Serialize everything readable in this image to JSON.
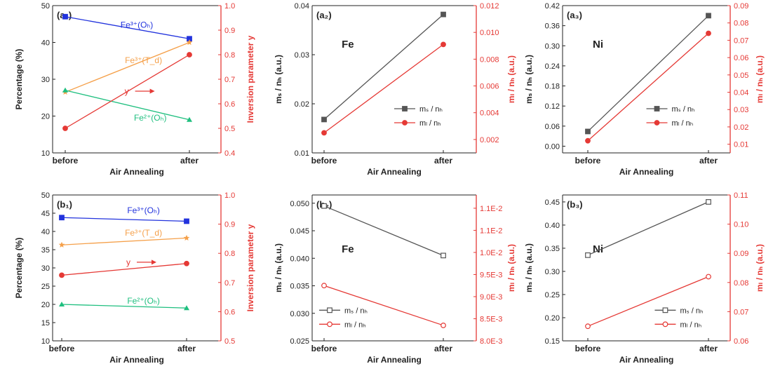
{
  "figure": {
    "colors": {
      "axis": "#222222",
      "right_axis": "#e53935",
      "blue": "#2233dd",
      "orange": "#f5a04a",
      "green": "#1fbf7f",
      "red": "#e53935",
      "gray": "#555555"
    }
  },
  "chart_data": [
    {
      "id": "a1",
      "type": "line",
      "panel_label": "(a₁)",
      "categories": [
        "before",
        "after"
      ],
      "xlabel": "Air Annealing",
      "ylabel": "Percentage (%)",
      "ylim": [
        10,
        50
      ],
      "yticks": [
        "10",
        "20",
        "30",
        "40",
        "50"
      ],
      "yticks_v": [
        10,
        20,
        30,
        40,
        50
      ],
      "y2label": "Inversion parameter y",
      "y2lim": [
        0.4,
        1.0
      ],
      "y2ticks": [
        "0.4",
        "0.5",
        "0.6",
        "0.7",
        "0.8",
        "0.9",
        "1.0"
      ],
      "y2ticks_v": [
        0.4,
        0.5,
        0.6,
        0.7,
        0.8,
        0.9,
        1.0
      ],
      "series": [
        {
          "name": "Fe³⁺(Oₕ)",
          "axis": "left",
          "values": [
            47,
            41
          ],
          "color": "#2233dd",
          "marker": "square"
        },
        {
          "name": "Fe³⁺(T_d)",
          "axis": "left",
          "values": [
            26.5,
            40
          ],
          "color": "#f5a04a",
          "marker": "star"
        },
        {
          "name": "Fe²⁺(Oₕ)",
          "axis": "left",
          "values": [
            27,
            19
          ],
          "color": "#1fbf7f",
          "marker": "triangle"
        },
        {
          "name": "y",
          "axis": "right",
          "values": [
            0.5,
            0.8
          ],
          "color": "#e53935",
          "marker": "circle"
        }
      ],
      "annotations": [
        {
          "text": "Fe³⁺(Oₕ)",
          "fx": 0.5,
          "fy": 0.85,
          "color": "#2233dd"
        },
        {
          "text": "Fe³⁺(T_d)",
          "fx": 0.54,
          "fy": 0.61,
          "color": "#f5a04a"
        },
        {
          "text": "y",
          "fx": 0.44,
          "fy": 0.4,
          "color": "#e53935",
          "arrow": true
        },
        {
          "text": "Fe²⁺(Oₕ)",
          "fx": 0.58,
          "fy": 0.22,
          "color": "#1fbf7f"
        }
      ]
    },
    {
      "id": "a2",
      "type": "line",
      "panel_label": "(a₂)",
      "inside_label": "Fe",
      "categories": [
        "before",
        "after"
      ],
      "xlabel": "Air Annealing",
      "ylabel": "mₛ / nₕ (a.u.)",
      "ylim": [
        0.01,
        0.04
      ],
      "yticks": [
        "0.01",
        "0.02",
        "0.03",
        "0.04"
      ],
      "yticks_v": [
        0.01,
        0.02,
        0.03,
        0.04
      ],
      "y2label": "mₗ / nₕ (a.u.)",
      "y2lim": [
        0.001,
        0.012
      ],
      "y2ticks": [
        "0.002",
        "0.004",
        "0.006",
        "0.008",
        "0.010",
        "0.012"
      ],
      "y2ticks_v": [
        0.002,
        0.004,
        0.006,
        0.008,
        0.01,
        0.012
      ],
      "series": [
        {
          "name": "mₛ / nₕ",
          "axis": "left",
          "values": [
            0.0168,
            0.0382
          ],
          "color": "#555555",
          "marker": "square"
        },
        {
          "name": "mₗ / nₕ",
          "axis": "right",
          "values": [
            0.0025,
            0.0091
          ],
          "color": "#e53935",
          "marker": "circle"
        }
      ],
      "legend": "center-right"
    },
    {
      "id": "a3",
      "type": "line",
      "panel_label": "(a₃)",
      "inside_label": "Ni",
      "categories": [
        "before",
        "after"
      ],
      "xlabel": "Air Annealing",
      "ylabel": "mₛ / nₕ (a.u.)",
      "ylim": [
        -0.02,
        0.42
      ],
      "yticks": [
        "0.00",
        "0.06",
        "0.12",
        "0.18",
        "0.24",
        "0.30",
        "0.36",
        "0.42"
      ],
      "yticks_v": [
        0,
        0.06,
        0.12,
        0.18,
        0.24,
        0.3,
        0.36,
        0.42
      ],
      "y2label": "mₗ / nₕ (a.u.)",
      "y2lim": [
        0.005,
        0.09
      ],
      "y2ticks": [
        "0.01",
        "0.02",
        "0.03",
        "0.04",
        "0.05",
        "0.06",
        "0.07",
        "0.08",
        "0.09"
      ],
      "y2ticks_v": [
        0.01,
        0.02,
        0.03,
        0.04,
        0.05,
        0.06,
        0.07,
        0.08,
        0.09
      ],
      "series": [
        {
          "name": "mₛ / nₕ",
          "axis": "left",
          "values": [
            0.044,
            0.39
          ],
          "color": "#555555",
          "marker": "square"
        },
        {
          "name": "mₗ / nₕ",
          "axis": "right",
          "values": [
            0.012,
            0.074
          ],
          "color": "#e53935",
          "marker": "circle"
        }
      ],
      "legend": "center-right"
    },
    {
      "id": "b1",
      "type": "line",
      "panel_label": "(b₁)",
      "categories": [
        "before",
        "after"
      ],
      "xlabel": "Air Annealing",
      "ylabel": "Percentage (%)",
      "ylim": [
        10,
        50
      ],
      "yticks": [
        "10",
        "15",
        "20",
        "25",
        "30",
        "35",
        "40",
        "45",
        "50"
      ],
      "yticks_v": [
        10,
        15,
        20,
        25,
        30,
        35,
        40,
        45,
        50
      ],
      "y2label": "Inversion parameter y",
      "y2lim": [
        0.5,
        1.0
      ],
      "y2ticks": [
        "0.5",
        "0.6",
        "0.7",
        "0.8",
        "0.9",
        "1.0"
      ],
      "y2ticks_v": [
        0.5,
        0.6,
        0.7,
        0.8,
        0.9,
        1.0
      ],
      "series": [
        {
          "name": "Fe³⁺(Oₕ)",
          "axis": "left",
          "values": [
            43.8,
            42.8
          ],
          "color": "#2233dd",
          "marker": "square"
        },
        {
          "name": "Fe³⁺(T_d)",
          "axis": "left",
          "values": [
            36.3,
            38.2
          ],
          "color": "#f5a04a",
          "marker": "star"
        },
        {
          "name": "Fe²⁺(Oₕ)",
          "axis": "left",
          "values": [
            20,
            19
          ],
          "color": "#1fbf7f",
          "marker": "triangle"
        },
        {
          "name": "y",
          "axis": "right",
          "values": [
            0.725,
            0.765
          ],
          "color": "#e53935",
          "marker": "circle"
        }
      ],
      "annotations": [
        {
          "text": "Fe³⁺(Oₕ)",
          "fx": 0.54,
          "fy": 0.875,
          "color": "#2233dd"
        },
        {
          "text": "Fe³⁺(T_d)",
          "fx": 0.54,
          "fy": 0.72,
          "color": "#f5a04a"
        },
        {
          "text": "y",
          "fx": 0.45,
          "fy": 0.52,
          "color": "#e53935",
          "arrow": true
        },
        {
          "text": "Fe²⁺(Oₕ)",
          "fx": 0.54,
          "fy": 0.255,
          "color": "#1fbf7f"
        }
      ]
    },
    {
      "id": "b2",
      "type": "line",
      "panel_label": "(b₂)",
      "inside_label": "Fe",
      "categories": [
        "before",
        "after"
      ],
      "xlabel": "Air Annealing",
      "ylabel": "mₛ / nₕ (a.u.)",
      "ylim": [
        0.025,
        0.0515
      ],
      "yticks": [
        "0.025",
        "0.030",
        "0.035",
        "0.040",
        "0.045",
        "0.050"
      ],
      "yticks_v": [
        0.025,
        0.03,
        0.035,
        0.04,
        0.045,
        0.05
      ],
      "y2label": "mₗ / nₕ (a.u.)",
      "y2lim": [
        0.008,
        0.0113
      ],
      "y2ticks": [
        "8.0E-3",
        "8.5E-3",
        "9.0E-3",
        "9.5E-3",
        "1.0E-2",
        "1.1E-2",
        "1.1E-2"
      ],
      "y2ticks_v": [
        0.008,
        0.0085,
        0.009,
        0.0095,
        0.01,
        0.0105,
        0.011
      ],
      "series": [
        {
          "name": "mₛ / nₕ",
          "axis": "left",
          "values": [
            0.0495,
            0.0405
          ],
          "color": "#555555",
          "marker": "square-open"
        },
        {
          "name": "mₗ / nₕ",
          "axis": "right",
          "values": [
            0.00925,
            0.00835
          ],
          "color": "#e53935",
          "marker": "circle-open"
        }
      ],
      "legend": "bottom-left"
    },
    {
      "id": "b3",
      "type": "line",
      "panel_label": "(b₃)",
      "inside_label": "Ni",
      "categories": [
        "before",
        "after"
      ],
      "xlabel": "Air Annealing",
      "ylabel": "mₛ / nₕ (a.u.)",
      "ylim": [
        0.15,
        0.465
      ],
      "yticks": [
        "0.15",
        "0.20",
        "0.25",
        "0.30",
        "0.35",
        "0.40",
        "0.45"
      ],
      "yticks_v": [
        0.15,
        0.2,
        0.25,
        0.3,
        0.35,
        0.4,
        0.45
      ],
      "y2label": "mₗ / nₕ (a.u.)",
      "y2lim": [
        0.06,
        0.11
      ],
      "y2ticks": [
        "0.06",
        "0.07",
        "0.08",
        "0.09",
        "0.10",
        "0.11"
      ],
      "y2ticks_v": [
        0.06,
        0.07,
        0.08,
        0.09,
        0.1,
        0.11
      ],
      "series": [
        {
          "name": "mₛ / nₕ",
          "axis": "left",
          "values": [
            0.335,
            0.45
          ],
          "color": "#555555",
          "marker": "square-open"
        },
        {
          "name": "mₗ / nₕ",
          "axis": "right",
          "values": [
            0.065,
            0.082
          ],
          "color": "#e53935",
          "marker": "circle-open"
        }
      ],
      "legend": "bottom-right"
    }
  ]
}
